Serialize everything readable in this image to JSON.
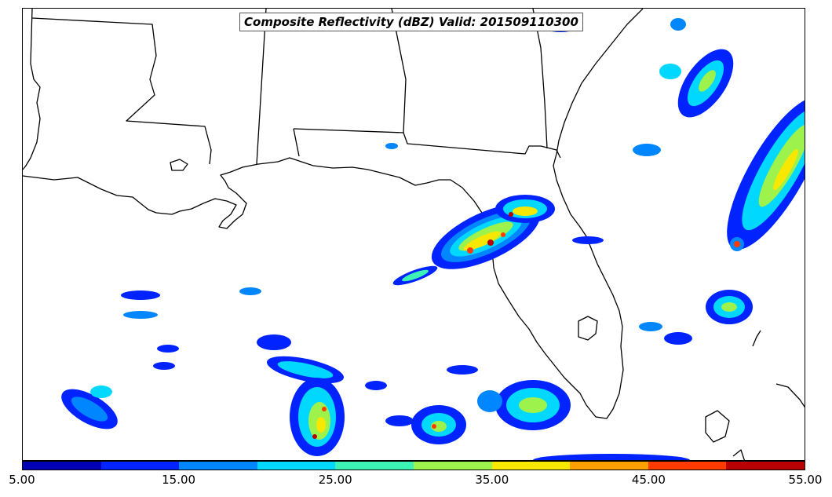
{
  "title": "Composite Reflectivity (dBZ) Valid: 201509110300",
  "colorbar": {
    "colors": [
      "#0000b4",
      "#0023ff",
      "#0086ff",
      "#00d8ff",
      "#3cf2b4",
      "#9ef24c",
      "#f8e800",
      "#ffa000",
      "#ff3b00",
      "#b80000"
    ],
    "tick_labels": [
      "5.00",
      "15.00",
      "25.00",
      "35.00",
      "45.00",
      "55.00"
    ]
  },
  "icons": {
    "map": "reflectivity-map",
    "colorbar": "colorbar-scale"
  }
}
